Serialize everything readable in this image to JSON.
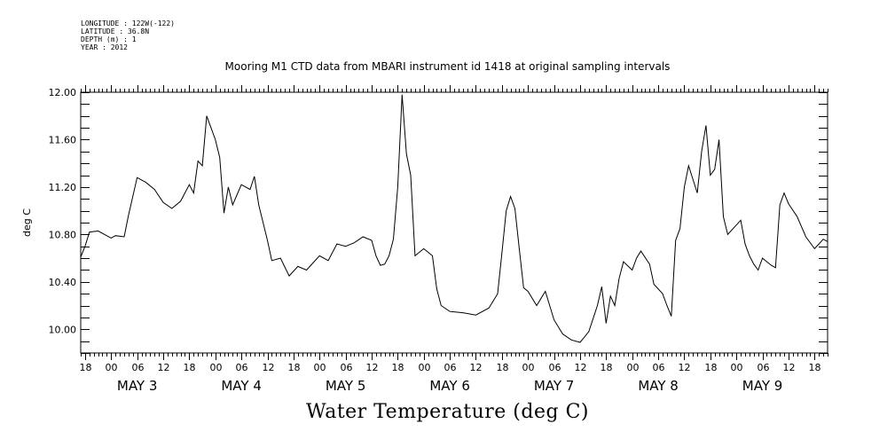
{
  "header": {
    "meta_lines": [
      "LONGITUDE : 122W(-122)",
      "LATITUDE : 36.8N",
      "DEPTH (m) : 1",
      "YEAR : 2012"
    ],
    "title": "Mooring M1 CTD data from MBARI instrument id 1418 at original sampling intervals"
  },
  "chart_data": {
    "type": "line",
    "title": "Mooring M1 CTD data from MBARI instrument id 1418 at original sampling intervals",
    "xlabel": "Water Temperature (deg C)",
    "ylabel": "deg C",
    "xlim": [
      "2012-05-02T17:00",
      "2012-05-09T21:00"
    ],
    "ylim": [
      9.8,
      12.0
    ],
    "y_ticks": [
      "12.00",
      "11.60",
      "11.20",
      "10.80",
      "10.40",
      "10.00"
    ],
    "x_hour_labels": [
      "00",
      "06",
      "12",
      "18"
    ],
    "x_day_labels": [
      "MAY 3",
      "MAY 4",
      "MAY 5",
      "MAY 6",
      "MAY 7",
      "MAY 8",
      "MAY 9"
    ],
    "series": [
      {
        "points": [
          [
            "2012-05-02T17:00",
            10.61
          ],
          [
            "2012-05-02T18:00",
            10.7
          ],
          [
            "2012-05-02T19:00",
            10.82
          ],
          [
            "2012-05-02T21:00",
            10.83
          ],
          [
            "2012-05-03T00:00",
            10.77
          ],
          [
            "2012-05-03T01:00",
            10.79
          ],
          [
            "2012-05-03T03:00",
            10.78
          ],
          [
            "2012-05-03T04:00",
            10.96
          ],
          [
            "2012-05-03T06:00",
            11.28
          ],
          [
            "2012-05-03T08:00",
            11.24
          ],
          [
            "2012-05-03T10:00",
            11.18
          ],
          [
            "2012-05-03T12:00",
            11.07
          ],
          [
            "2012-05-03T14:00",
            11.02
          ],
          [
            "2012-05-03T16:00",
            11.08
          ],
          [
            "2012-05-03T18:00",
            11.22
          ],
          [
            "2012-05-03T19:00",
            11.15
          ],
          [
            "2012-05-03T20:00",
            11.42
          ],
          [
            "2012-05-03T21:00",
            11.38
          ],
          [
            "2012-05-03T22:00",
            11.8
          ],
          [
            "2012-05-03T23:00",
            11.7
          ],
          [
            "2012-05-04T00:00",
            11.6
          ],
          [
            "2012-05-04T01:00",
            11.45
          ],
          [
            "2012-05-04T02:00",
            10.98
          ],
          [
            "2012-05-04T03:00",
            11.2
          ],
          [
            "2012-05-04T04:00",
            11.05
          ],
          [
            "2012-05-04T06:00",
            11.22
          ],
          [
            "2012-05-04T08:00",
            11.18
          ],
          [
            "2012-05-04T09:00",
            11.29
          ],
          [
            "2012-05-04T10:00",
            11.05
          ],
          [
            "2012-05-04T12:00",
            10.75
          ],
          [
            "2012-05-04T13:00",
            10.58
          ],
          [
            "2012-05-04T15:00",
            10.6
          ],
          [
            "2012-05-04T17:00",
            10.45
          ],
          [
            "2012-05-04T19:00",
            10.53
          ],
          [
            "2012-05-04T21:00",
            10.5
          ],
          [
            "2012-05-05T00:00",
            10.62
          ],
          [
            "2012-05-05T02:00",
            10.58
          ],
          [
            "2012-05-05T04:00",
            10.72
          ],
          [
            "2012-05-05T06:00",
            10.7
          ],
          [
            "2012-05-05T08:00",
            10.73
          ],
          [
            "2012-05-05T10:00",
            10.78
          ],
          [
            "2012-05-05T12:00",
            10.75
          ],
          [
            "2012-05-05T13:00",
            10.62
          ],
          [
            "2012-05-05T14:00",
            10.54
          ],
          [
            "2012-05-05T15:00",
            10.55
          ],
          [
            "2012-05-05T16:00",
            10.62
          ],
          [
            "2012-05-05T17:00",
            10.76
          ],
          [
            "2012-05-05T18:00",
            11.2
          ],
          [
            "2012-05-05T19:00",
            11.98
          ],
          [
            "2012-05-05T20:00",
            11.48
          ],
          [
            "2012-05-05T21:00",
            11.3
          ],
          [
            "2012-05-05T22:00",
            10.62
          ],
          [
            "2012-05-06T00:00",
            10.68
          ],
          [
            "2012-05-06T02:00",
            10.62
          ],
          [
            "2012-05-06T03:00",
            10.34
          ],
          [
            "2012-05-06T04:00",
            10.2
          ],
          [
            "2012-05-06T06:00",
            10.15
          ],
          [
            "2012-05-06T09:00",
            10.14
          ],
          [
            "2012-05-06T12:00",
            10.12
          ],
          [
            "2012-05-06T15:00",
            10.18
          ],
          [
            "2012-05-06T17:00",
            10.3
          ],
          [
            "2012-05-06T18:00",
            10.64
          ],
          [
            "2012-05-06T19:00",
            11.0
          ],
          [
            "2012-05-06T20:00",
            11.12
          ],
          [
            "2012-05-06T21:00",
            11.02
          ],
          [
            "2012-05-06T22:00",
            10.68
          ],
          [
            "2012-05-06T23:00",
            10.35
          ],
          [
            "2012-05-07T00:00",
            10.32
          ],
          [
            "2012-05-07T02:00",
            10.2
          ],
          [
            "2012-05-07T04:00",
            10.32
          ],
          [
            "2012-05-07T06:00",
            10.08
          ],
          [
            "2012-05-07T08:00",
            9.96
          ],
          [
            "2012-05-07T10:00",
            9.91
          ],
          [
            "2012-05-07T12:00",
            9.89
          ],
          [
            "2012-05-07T14:00",
            9.98
          ],
          [
            "2012-05-07T16:00",
            10.2
          ],
          [
            "2012-05-07T17:00",
            10.36
          ],
          [
            "2012-05-07T18:00",
            10.05
          ],
          [
            "2012-05-07T19:00",
            10.28
          ],
          [
            "2012-05-07T20:00",
            10.2
          ],
          [
            "2012-05-07T21:00",
            10.43
          ],
          [
            "2012-05-07T22:00",
            10.57
          ],
          [
            "2012-05-08T00:00",
            10.5
          ],
          [
            "2012-05-08T01:00",
            10.6
          ],
          [
            "2012-05-08T02:00",
            10.66
          ],
          [
            "2012-05-08T04:00",
            10.55
          ],
          [
            "2012-05-08T05:00",
            10.38
          ],
          [
            "2012-05-08T07:00",
            10.3
          ],
          [
            "2012-05-08T08:00",
            10.2
          ],
          [
            "2012-05-08T09:00",
            10.11
          ],
          [
            "2012-05-08T10:00",
            10.75
          ],
          [
            "2012-05-08T11:00",
            10.85
          ],
          [
            "2012-05-08T12:00",
            11.2
          ],
          [
            "2012-05-08T13:00",
            11.38
          ],
          [
            "2012-05-08T15:00",
            11.15
          ],
          [
            "2012-05-08T16:00",
            11.5
          ],
          [
            "2012-05-08T17:00",
            11.72
          ],
          [
            "2012-05-08T18:00",
            11.3
          ],
          [
            "2012-05-08T19:00",
            11.35
          ],
          [
            "2012-05-08T20:00",
            11.6
          ],
          [
            "2012-05-08T21:00",
            10.95
          ],
          [
            "2012-05-08T22:00",
            10.8
          ],
          [
            "2012-05-09T00:00",
            10.88
          ],
          [
            "2012-05-09T01:00",
            10.92
          ],
          [
            "2012-05-09T02:00",
            10.72
          ],
          [
            "2012-05-09T03:00",
            10.62
          ],
          [
            "2012-05-09T04:00",
            10.55
          ],
          [
            "2012-05-09T05:00",
            10.5
          ],
          [
            "2012-05-09T06:00",
            10.6
          ],
          [
            "2012-05-09T08:00",
            10.54
          ],
          [
            "2012-05-09T09:00",
            10.52
          ],
          [
            "2012-05-09T10:00",
            11.05
          ],
          [
            "2012-05-09T11:00",
            11.15
          ],
          [
            "2012-05-09T12:00",
            11.06
          ],
          [
            "2012-05-09T14:00",
            10.95
          ],
          [
            "2012-05-09T16:00",
            10.78
          ],
          [
            "2012-05-09T18:00",
            10.68
          ],
          [
            "2012-05-09T19:00",
            10.72
          ],
          [
            "2012-05-09T20:00",
            10.76
          ],
          [
            "2012-05-09T21:00",
            10.74
          ]
        ]
      }
    ]
  }
}
